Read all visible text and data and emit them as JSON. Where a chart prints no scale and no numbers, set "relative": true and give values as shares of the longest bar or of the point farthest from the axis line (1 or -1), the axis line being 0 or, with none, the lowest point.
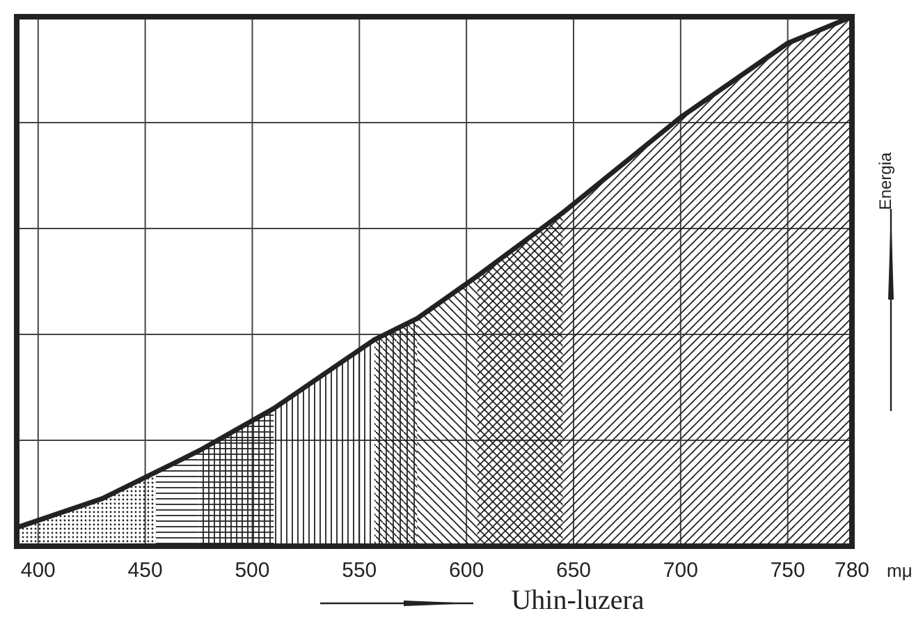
{
  "chart_data": {
    "type": "area",
    "relative": true,
    "xlabel": "Uhin-luzera",
    "ylabel": "Energia",
    "annotations": [
      "mμ"
    ],
    "xlim": [
      390,
      780
    ],
    "xticks": [
      400,
      450,
      500,
      550,
      600,
      650,
      700,
      750,
      780
    ],
    "grid": true,
    "series": [
      {
        "color": "#222222",
        "x": [
          390,
          430,
          455
        ],
        "values": [
          0.035,
          0.09,
          0.14
        ]
      },
      {
        "color": "#222222",
        "x": [
          455,
          475
        ],
        "values": [
          0.14,
          0.18
        ]
      },
      {
        "color": "#222222",
        "x": [
          475,
          510
        ],
        "values": [
          0.18,
          0.26
        ]
      },
      {
        "color": "#222222",
        "x": [
          510,
          557
        ],
        "values": [
          0.26,
          0.39
        ]
      },
      {
        "color": "#222222",
        "x": [
          557,
          577
        ],
        "values": [
          0.39,
          0.43
        ]
      },
      {
        "color": "#222222",
        "x": [
          577,
          605
        ],
        "values": [
          0.43,
          0.51
        ]
      },
      {
        "color": "#222222",
        "x": [
          605,
          645
        ],
        "values": [
          0.51,
          0.63
        ]
      },
      {
        "color": "#222222",
        "x": [
          645,
          700,
          750,
          780
        ],
        "values": [
          0.63,
          0.81,
          0.95,
          1.0
        ]
      }
    ]
  }
}
